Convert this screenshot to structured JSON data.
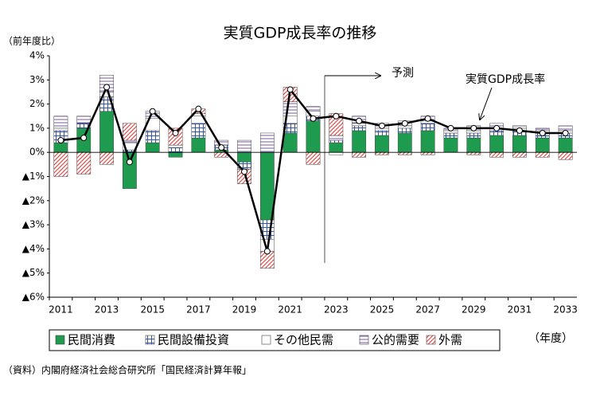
{
  "chart_data": {
    "type": "stacked_bar_line",
    "title": "実質GDP成長率の推移",
    "y_axis_label": "（前年度比）",
    "x_axis_label": "（年度）",
    "source": "（資料）内閣府経済社会総合研究所「国民経済計算年報」",
    "annotations": [
      "予測"
    ],
    "categories": [
      "2011",
      null,
      "2013",
      null,
      "2015",
      null,
      "2017",
      null,
      "2019",
      null,
      "2021",
      null,
      "2023",
      null,
      "2025",
      null,
      "2027",
      null,
      "2029",
      null,
      "2031",
      null,
      "2033"
    ],
    "ylim": [
      -6,
      4
    ],
    "yticks": [
      {
        "value": 4,
        "label": "4%"
      },
      {
        "value": 3,
        "label": "3%"
      },
      {
        "value": 2,
        "label": "2%"
      },
      {
        "value": 1,
        "label": "1%"
      },
      {
        "value": 0,
        "label": "0%"
      },
      {
        "value": -1,
        "label": "▲1%"
      },
      {
        "value": -2,
        "label": "▲2%"
      },
      {
        "value": -3,
        "label": "▲3%"
      },
      {
        "value": -4,
        "label": "▲4%"
      },
      {
        "value": -5,
        "label": "▲5%"
      },
      {
        "value": -6,
        "label": "▲6%"
      }
    ],
    "series": [
      {
        "name": "民間消費",
        "color": "#1e9b4f",
        "values": [
          0.4,
          1.0,
          1.7,
          -1.5,
          0.4,
          -0.2,
          0.6,
          0.1,
          -0.4,
          -2.8,
          0.8,
          1.3,
          0.4,
          0.9,
          0.7,
          0.8,
          0.9,
          0.6,
          0.6,
          0.7,
          0.7,
          0.6,
          0.6
        ]
      },
      {
        "name": "民間設備投資",
        "color": "#3355aa",
        "values": [
          0.5,
          0.2,
          0.6,
          0.1,
          0.5,
          0.2,
          0.6,
          0.2,
          -0.3,
          -0.8,
          0.4,
          0.2,
          0.1,
          0.2,
          0.2,
          0.2,
          0.3,
          0.2,
          0.2,
          0.2,
          0.2,
          0.2,
          0.2
        ]
      },
      {
        "name": "その他民需",
        "color": "#ffffff",
        "values": [
          0.1,
          0,
          0.2,
          0.3,
          0.5,
          0,
          0.3,
          0,
          0,
          -0.5,
          0.3,
          0.2,
          -0.1,
          0.1,
          0.1,
          0.1,
          0.1,
          0.1,
          0.1,
          0.1,
          0.1,
          0.1,
          0.1
        ]
      },
      {
        "name": "公的需要",
        "color": "#7a5aa8",
        "values": [
          0.5,
          0.3,
          0.7,
          0.1,
          0.3,
          0.1,
          0.1,
          0.2,
          0.5,
          0.8,
          0.6,
          0.2,
          0.2,
          0.3,
          0.2,
          0.2,
          0.2,
          0.1,
          0.2,
          0.2,
          0.1,
          0.1,
          0.2
        ]
      },
      {
        "name": "外需",
        "color": "#d9534f",
        "values": [
          -1.0,
          -0.9,
          -0.5,
          0.7,
          0,
          0.7,
          0.2,
          -0.2,
          -0.6,
          -0.7,
          0.6,
          -0.5,
          0.9,
          -0.2,
          -0.1,
          -0.1,
          -0.1,
          0,
          -0.1,
          -0.2,
          -0.2,
          -0.2,
          -0.3
        ]
      }
    ],
    "line": {
      "name": "実質GDP成長率",
      "color": "#000000",
      "values": [
        0.5,
        0.6,
        2.7,
        -0.4,
        1.7,
        0.8,
        1.8,
        0.2,
        -0.8,
        -4.1,
        2.6,
        1.4,
        1.5,
        1.3,
        1.1,
        1.2,
        1.4,
        1.0,
        1.0,
        1.0,
        0.9,
        0.8,
        0.8
      ]
    }
  }
}
